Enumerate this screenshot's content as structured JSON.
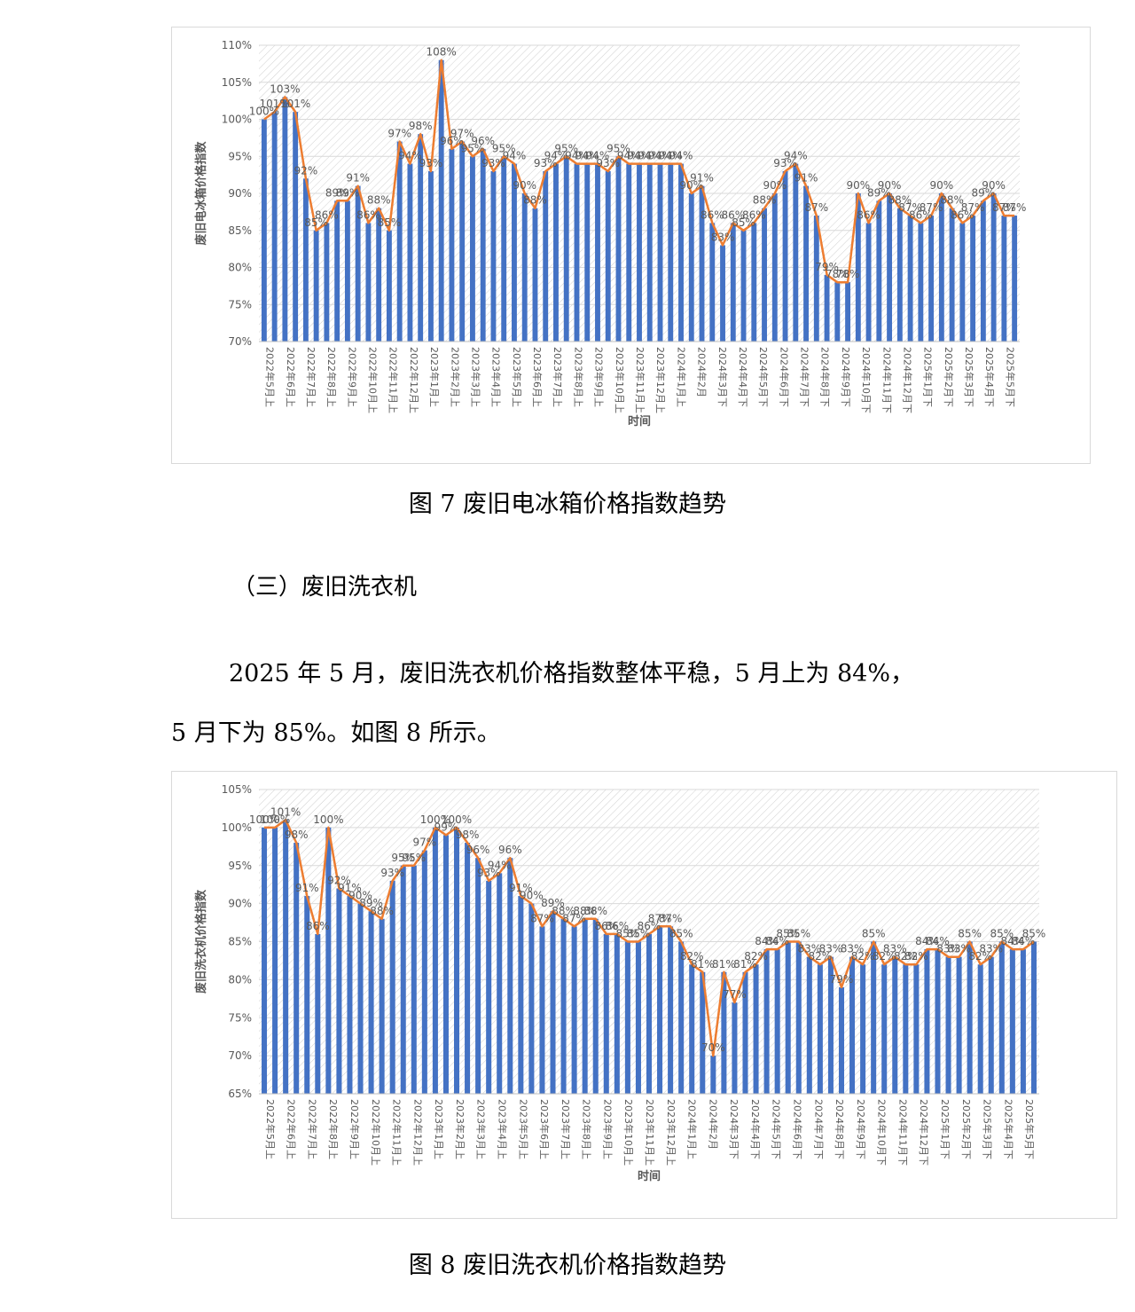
{
  "fig7_caption": "图 7  废旧电冰箱价格指数趋势",
  "section_heading": "（三）废旧洗衣机",
  "paragraph_line1": "2025 年 5 月，废旧洗衣机价格指数整体平稳，5 月上为 84%，",
  "paragraph_line2": "5 月下为 85%。如图 8 所示。",
  "fig8_caption": "图 8  废旧洗衣机价格指数趋势",
  "colors": {
    "bar": "#4472c4",
    "line": "#ed7d31",
    "axis_text": "#595959"
  },
  "chart_data": [
    {
      "type": "bar+line",
      "title": "",
      "xlabel": "时间",
      "ylabel": "废旧电冰箱价格指数",
      "ylim": [
        70,
        110
      ],
      "yticks": [
        "70%",
        "75%",
        "80%",
        "85%",
        "90%",
        "95%",
        "100%",
        "105%",
        "110%"
      ],
      "grid": "hatched background",
      "x_tick_labels": [
        "2022年5月上",
        "2022年6月上",
        "2022年7月上",
        "2022年8月上",
        "2022年9月上",
        "2022年10月上",
        "2022年11月上",
        "2022年12月上",
        "2023年1月上",
        "2023年2月上",
        "2023年3月上",
        "2023年4月上",
        "2023年5月上",
        "2023年6月上",
        "2023年7月上",
        "2023年8月上",
        "2023年9月上",
        "2023年10月上",
        "2023年11月上",
        "2023年12月上",
        "2024年1月上",
        "2024年2月",
        "2024年3月下",
        "2024年4月下",
        "2024年5月下",
        "2024年6月下",
        "2024年7月下",
        "2024年8月下",
        "2024年9月下",
        "2024年10月下",
        "2024年11月下",
        "2024年12月下",
        "2025年1月下",
        "2025年2月下",
        "2025年3月下",
        "2025年4月下",
        "2025年5月下"
      ],
      "values": [
        100,
        101,
        103,
        101,
        92,
        85,
        86,
        89,
        89,
        91,
        86,
        88,
        85,
        97,
        94,
        98,
        93,
        108,
        96,
        97,
        95,
        96,
        93,
        95,
        94,
        90,
        88,
        93,
        94,
        95,
        94,
        94,
        94,
        93,
        95,
        94,
        94,
        94,
        94,
        94,
        94,
        90,
        91,
        86,
        83,
        86,
        85,
        86,
        88,
        90,
        93,
        94,
        91,
        87,
        79,
        78,
        78,
        90,
        86,
        89,
        90,
        88,
        87,
        86,
        87,
        90,
        88,
        86,
        87,
        89,
        90,
        87,
        87
      ],
      "data_labels": [
        "100%",
        "101%",
        "103%",
        "101%",
        "92%",
        "85%",
        "86%",
        "89%",
        "89%",
        "91%",
        "86%",
        "88%",
        "85%",
        "97%",
        "94%",
        "98%",
        "93%",
        "108%",
        "96%",
        "97%",
        "95%",
        "96%",
        "93%",
        "95%",
        "94%",
        "90%",
        "88%",
        "93%",
        "94%",
        "95%",
        "94%",
        "94%",
        "94%",
        "93%",
        "95%",
        "94%",
        "94%",
        "94%",
        "94%",
        "94%",
        "94%",
        "90%",
        "91%",
        "86%",
        "83%",
        "86%",
        "85%",
        "86%",
        "88%",
        "90%",
        "93%",
        "94%",
        "91%",
        "87%",
        "79%",
        "78%",
        "78%",
        "90%",
        "86%",
        "89%",
        "90%",
        "88%",
        "87%",
        "86%",
        "87%",
        "90%",
        "88%",
        "86%",
        "87%",
        "89%",
        "90%",
        "87%",
        "87%"
      ]
    },
    {
      "type": "bar+line",
      "title": "",
      "xlabel": "时间",
      "ylabel": "废旧洗衣机价格指数",
      "ylim": [
        65,
        105
      ],
      "yticks": [
        "65%",
        "70%",
        "75%",
        "80%",
        "85%",
        "90%",
        "95%",
        "100%",
        "105%"
      ],
      "grid": "hatched background",
      "x_tick_labels": [
        "2022年5月上",
        "2022年6月上",
        "2022年7月上",
        "2022年8月上",
        "2022年9月上",
        "2022年10月上",
        "2022年11月上",
        "2022年12月上",
        "2023年1月上",
        "2023年2月上",
        "2023年3月上",
        "2023年4月上",
        "2023年5月上",
        "2023年6月上",
        "2023年7月上",
        "2023年8月上",
        "2023年9月上",
        "2023年10月上",
        "2023年11月上",
        "2023年12月上",
        "2024年1月上",
        "2024年2月",
        "2024年3月下",
        "2024年4月下",
        "2024年5月下",
        "2024年6月下",
        "2024年7月下",
        "2024年8月下",
        "2024年9月下",
        "2024年10月下",
        "2024年11月下",
        "2024年12月下",
        "2025年1月下",
        "2025年2月下",
        "2025年3月下",
        "2025年4月下",
        "2025年5月下"
      ],
      "values": [
        100,
        100,
        101,
        98,
        91,
        86,
        100,
        92,
        91,
        90,
        89,
        88,
        93,
        95,
        95,
        97,
        100,
        99,
        100,
        98,
        96,
        93,
        94,
        96,
        91,
        90,
        87,
        89,
        88,
        87,
        88,
        88,
        86,
        86,
        85,
        85,
        86,
        87,
        87,
        85,
        82,
        81,
        70,
        81,
        77,
        81,
        82,
        84,
        84,
        85,
        85,
        83,
        82,
        83,
        79,
        83,
        82,
        85,
        82,
        83,
        82,
        82,
        84,
        84,
        83,
        83,
        85,
        82,
        83,
        85,
        84,
        84,
        85
      ],
      "data_labels": [
        "100%",
        "100%",
        "101%",
        "98%",
        "91%",
        "86%",
        "100%",
        "92%",
        "91%",
        "90%",
        "89%",
        "88%",
        "93%",
        "95%",
        "95%",
        "97%",
        "100%",
        "99%",
        "100%",
        "98%",
        "96%",
        "93%",
        "94%",
        "96%",
        "91%",
        "90%",
        "87%",
        "89%",
        "88%",
        "87%",
        "88%",
        "88%",
        "86%",
        "86%",
        "85%",
        "85%",
        "86%",
        "87%",
        "87%",
        "85%",
        "82%",
        "81%",
        "70%",
        "81%",
        "77%",
        "81%",
        "82%",
        "84%",
        "84%",
        "85%",
        "85%",
        "83%",
        "82%",
        "83%",
        "79%",
        "83%",
        "82%",
        "85%",
        "82%",
        "83%",
        "82%",
        "82%",
        "84%",
        "84%",
        "83%",
        "83%",
        "85%",
        "82%",
        "83%",
        "85%",
        "84%",
        "84%",
        "85%"
      ]
    }
  ]
}
